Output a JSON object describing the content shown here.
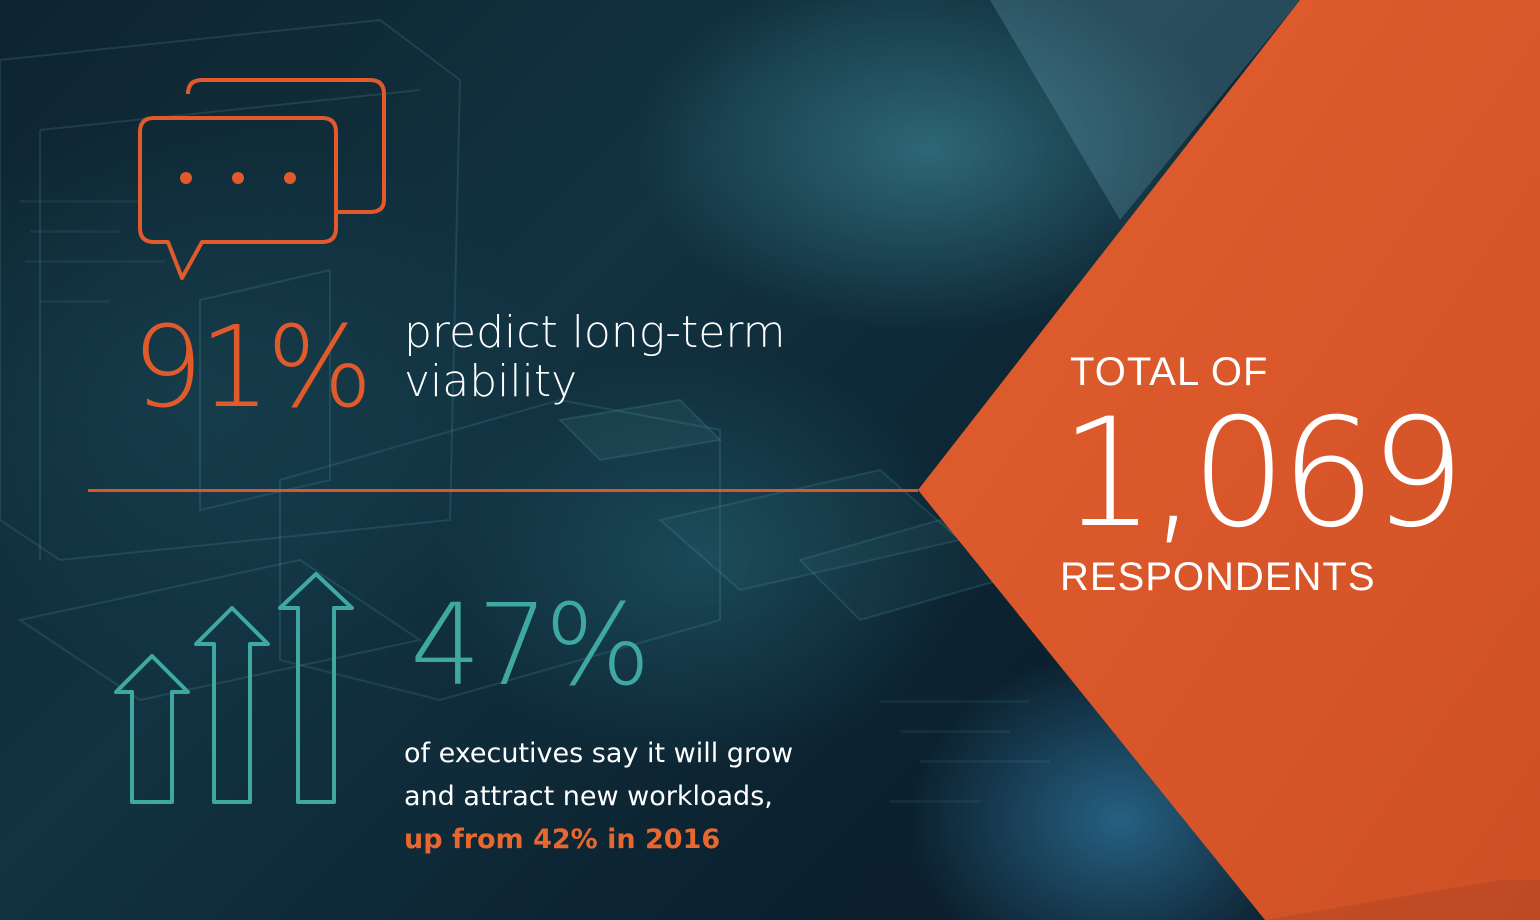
{
  "colors": {
    "accent_orange": "#e05a2c",
    "accent_teal": "#3fa8a0",
    "panel_orange": "#d9582b",
    "text_white": "#ffffff"
  },
  "stat1": {
    "icon": "chat-bubbles-icon",
    "value": "91%",
    "label_line1": "predict long-term",
    "label_line2": "viability"
  },
  "stat2": {
    "icon": "up-arrows-icon",
    "value": "47%",
    "line1": "of executives say it will grow",
    "line2": "and attract new workloads,",
    "line3": "up from 42% in 2016"
  },
  "total": {
    "top": "TOTAL OF",
    "value": "1,069",
    "bottom": "RESPONDENTS"
  }
}
